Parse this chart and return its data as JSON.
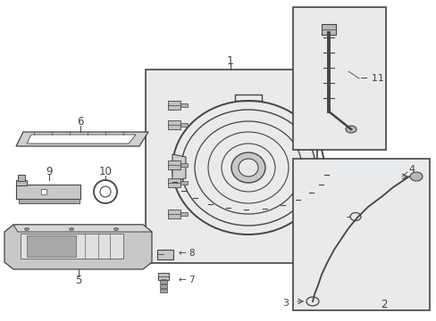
{
  "bg_color": "#ffffff",
  "line_color": "#444444",
  "box_bg": "#e8eaec",
  "bolt_color": "#aaaaaa",
  "part_fill": "#cccccc",
  "part_fill2": "#bbbbbb",
  "white": "#ffffff",
  "dark": "#666666"
}
